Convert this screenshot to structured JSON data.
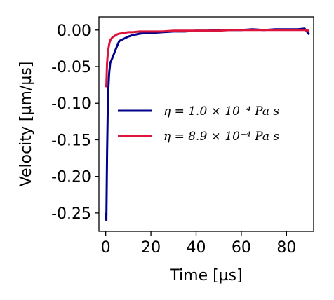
{
  "chart_data": {
    "type": "line",
    "title": "",
    "xlabel": "Time [µs]",
    "ylabel": "Velocity [µm/µs]",
    "xlim": [
      -3,
      92
    ],
    "ylim": [
      -0.275,
      0.018
    ],
    "xticks": [
      0,
      20,
      40,
      60,
      80
    ],
    "xtick_labels": [
      "0",
      "20",
      "40",
      "60",
      "80"
    ],
    "yticks": [
      0.0,
      -0.05,
      -0.1,
      -0.15,
      -0.2,
      -0.25
    ],
    "ytick_labels": [
      "0.00",
      "-0.05",
      "-0.10",
      "-0.15",
      "-0.20",
      "-0.25"
    ],
    "grid": false,
    "legend_position": "center-right",
    "series": [
      {
        "name": "η = 1.0 × 10⁻⁴ Pa s",
        "color": "#00008b",
        "x": [
          0,
          0.3,
          0.6,
          1,
          1.5,
          2,
          3,
          4,
          5,
          6,
          8,
          10,
          12,
          15,
          18,
          20,
          25,
          30,
          35,
          40,
          45,
          50,
          55,
          60,
          65,
          70,
          75,
          80,
          85,
          88,
          90
        ],
        "y": [
          -0.25,
          -0.26,
          -0.17,
          -0.09,
          -0.06,
          -0.045,
          -0.038,
          -0.03,
          -0.022,
          -0.015,
          -0.012,
          -0.009,
          -0.007,
          -0.005,
          -0.004,
          -0.004,
          -0.003,
          -0.002,
          -0.002,
          -0.001,
          -0.001,
          0.0,
          0.0,
          0.0,
          0.001,
          0.0,
          0.001,
          0.001,
          0.001,
          0.002,
          -0.006
        ]
      },
      {
        "name": "η = 8.9 × 10⁻⁴ Pa s",
        "color": "#dc143c",
        "x": [
          0,
          0.3,
          0.6,
          1,
          1.5,
          2,
          3,
          4,
          5,
          6,
          8,
          10,
          12,
          15,
          18,
          20,
          25,
          30,
          35,
          40,
          45,
          50,
          55,
          60,
          65,
          70,
          75,
          80,
          85,
          88,
          90
        ],
        "y": [
          -0.078,
          -0.075,
          -0.045,
          -0.03,
          -0.02,
          -0.014,
          -0.01,
          -0.008,
          -0.006,
          -0.005,
          -0.004,
          -0.003,
          -0.003,
          -0.002,
          -0.002,
          -0.002,
          -0.002,
          -0.001,
          -0.001,
          -0.001,
          -0.001,
          -0.001,
          0.0,
          0.0,
          0.0,
          0.0,
          0.0,
          0.0,
          0.0,
          0.0,
          -0.001
        ]
      }
    ],
    "legend": [
      {
        "label": "η = 1.0 × 10⁻⁴ Pa s",
        "color": "#00008b"
      },
      {
        "label": "η = 8.9 × 10⁻⁴ Pa s",
        "color": "#dc143c"
      }
    ]
  }
}
